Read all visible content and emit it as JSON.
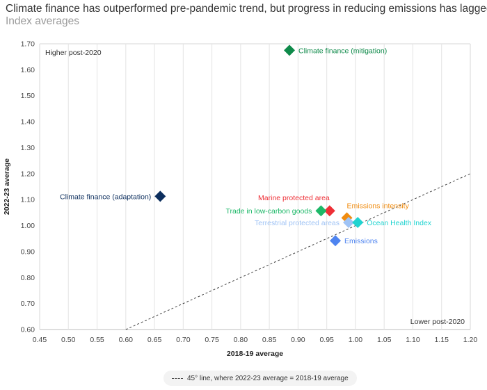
{
  "header": {
    "title": "Climate finance has outperformed pre-pandemic trend, but progress in reducing emissions has lagged",
    "subtitle": "Index averages"
  },
  "legend": {
    "line_label": "45° line, where 2022-23 average = 2018-19 average"
  },
  "chart_data": {
    "type": "scatter",
    "title": "Climate finance has outperformed pre-pandemic trend, but progress in reducing emissions has lagged",
    "subtitle": "Index averages",
    "xlabel": "2018-19 average",
    "ylabel": "2022-23 average",
    "xlim": [
      0.45,
      1.2
    ],
    "ylim": [
      0.6,
      1.7
    ],
    "x_ticks": [
      "0.45",
      "0.50",
      "0.55",
      "0.60",
      "0.65",
      "0.70",
      "0.75",
      "0.80",
      "0.85",
      "0.90",
      "0.95",
      "1.00",
      "1.05",
      "1.10",
      "1.15",
      "1.20"
    ],
    "y_ticks": [
      "0.60",
      "0.70",
      "0.80",
      "0.90",
      "1.00",
      "1.10",
      "1.20",
      "1.30",
      "1.40",
      "1.50",
      "1.60",
      "1.70"
    ],
    "vertical_grid": true,
    "annotations": {
      "top_left": "Higher post-2020",
      "bottom_right": "Lower post-2020"
    },
    "reference_line": {
      "label": "45° line, where 2022-23 average = 2018-19 average",
      "style": "dashed",
      "color": "#444444"
    },
    "points": [
      {
        "label": "Climate finance (mitigation)",
        "x": 0.885,
        "y": 1.675,
        "color": "#0f8a4a",
        "label_side": "right"
      },
      {
        "label": "Climate finance (adaptation)",
        "x": 0.66,
        "y": 1.113,
        "color": "#0d2f5e",
        "label_side": "left"
      },
      {
        "label": "Marine protected area",
        "x": 0.955,
        "y": 1.057,
        "color": "#ee2f36",
        "label_side": "above-left"
      },
      {
        "label": "Trade in low-carbon goods",
        "x": 0.94,
        "y": 1.057,
        "color": "#1db868",
        "label_side": "left"
      },
      {
        "label": "Emissions intensity",
        "x": 0.985,
        "y": 1.03,
        "color": "#f08c10",
        "label_side": "above-right"
      },
      {
        "label": "Terrestrial protected areas",
        "x": 0.988,
        "y": 1.012,
        "color": "#9fc3f5",
        "label_side": "left"
      },
      {
        "label": "Ocean Health Index",
        "x": 1.004,
        "y": 1.012,
        "color": "#1fd3d0",
        "label_side": "right"
      },
      {
        "label": "Emissions",
        "x": 0.965,
        "y": 0.942,
        "color": "#4e84f0",
        "label_side": "right"
      }
    ]
  }
}
